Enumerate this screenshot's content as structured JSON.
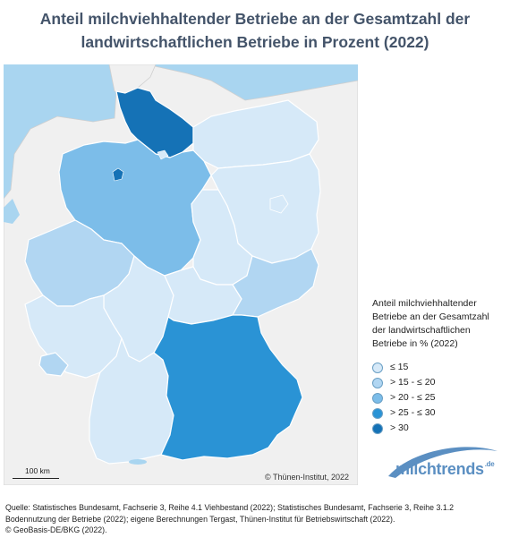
{
  "title": {
    "line1": "Anteil milchviehhaltender Betriebe an der Gesamtzahl der",
    "line2": "landwirtschaftlichen Betriebe in Prozent (2022)"
  },
  "legend": {
    "title_lines": [
      "Anteil milchviehhaltender",
      "Betriebe an der Gesamtzahl",
      "der landwirtschaftlichen",
      "Betriebe in % (2022)"
    ],
    "items": [
      {
        "label": "≤ 15",
        "color": "#d6e9f8"
      },
      {
        "label": "> 15 - ≤ 20",
        "color": "#b1d6f2"
      },
      {
        "label": "> 20 - ≤ 25",
        "color": "#7cbde9"
      },
      {
        "label": "> 25 - ≤ 30",
        "color": "#2a93d5"
      },
      {
        "label": "> 30",
        "color": "#1572b6"
      }
    ]
  },
  "map": {
    "sea_color": "#a9d5f0",
    "land_outside_color": "#f0f0f0",
    "states": [
      {
        "name": "Schleswig-Holstein",
        "class": "> 30"
      },
      {
        "name": "Niedersachsen",
        "class": "> 20 - ≤ 25"
      },
      {
        "name": "Bayern",
        "class": "> 25 - ≤ 30"
      },
      {
        "name": "Sachsen",
        "class": "> 15 - ≤ 20"
      },
      {
        "name": "Saarland",
        "class": "> 15 - ≤ 20"
      },
      {
        "name": "Nordrhein-Westfalen",
        "class": "> 15 - ≤ 20"
      },
      {
        "name": "Mecklenburg-Vorpommern",
        "class": "≤ 15"
      },
      {
        "name": "Brandenburg",
        "class": "≤ 15"
      },
      {
        "name": "Sachsen-Anhalt",
        "class": "≤ 15"
      },
      {
        "name": "Thüringen",
        "class": "≤ 15"
      },
      {
        "name": "Hessen",
        "class": "≤ 15"
      },
      {
        "name": "Rheinland-Pfalz",
        "class": "≤ 15"
      },
      {
        "name": "Baden-Württemberg",
        "class": "≤ 15"
      }
    ]
  },
  "scalebar": {
    "label": "100 km"
  },
  "copyright": "© Thünen-Institut, 2022",
  "logo": {
    "text": "milchtrends",
    "suffix": ".de"
  },
  "footer": {
    "line1": "Quelle: Statistisches Bundesamt, Fachserie 3, Reihe 4.1 Viehbestand (2022); Statistisches Bundesamt, Fachserie 3, Reihe 3.1.2",
    "line2": "Bodennutzung der Betriebe (2022); eigene Berechnungen Tergast, Thünen-Institut für Betriebswirtschaft (2022).",
    "line3": "© GeoBasis-DE/BKG (2022)."
  }
}
